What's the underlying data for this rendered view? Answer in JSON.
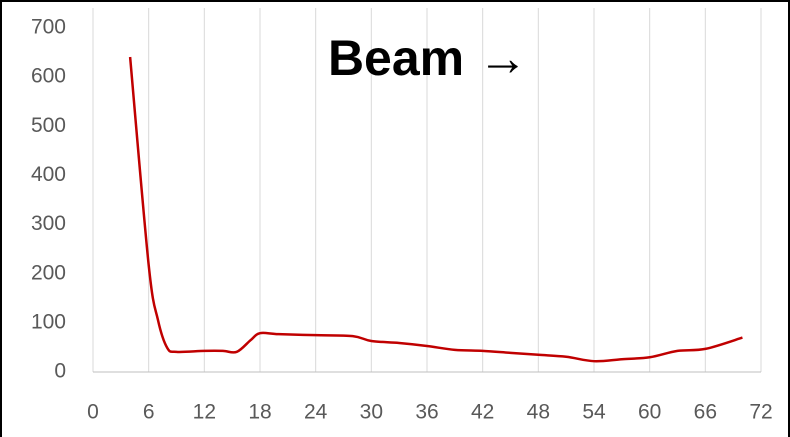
{
  "chart_data": {
    "type": "line",
    "annotation": "Beam →",
    "x": [
      4,
      6,
      7,
      8,
      9,
      12,
      14,
      15.5,
      17,
      18,
      20,
      24,
      28,
      30,
      33,
      36,
      39,
      42,
      45,
      48,
      51,
      54,
      57,
      60,
      63,
      66,
      70
    ],
    "series": [
      {
        "name": "",
        "color": "#c00000",
        "values": [
          641,
          218,
          106,
          49,
          41,
          43,
          43,
          41,
          65,
          79,
          77,
          75,
          73,
          63,
          59,
          53,
          45,
          43,
          39,
          35,
          31,
          22,
          26,
          30,
          43,
          47,
          70
        ]
      }
    ],
    "xlim": [
      0,
      72
    ],
    "xticks": [
      0,
      6,
      12,
      18,
      24,
      30,
      36,
      42,
      48,
      54,
      60,
      66,
      72
    ],
    "ylim": [
      0,
      700
    ],
    "yticks": [
      0,
      100,
      200,
      300,
      400,
      500,
      600,
      700
    ],
    "grid": "x"
  }
}
